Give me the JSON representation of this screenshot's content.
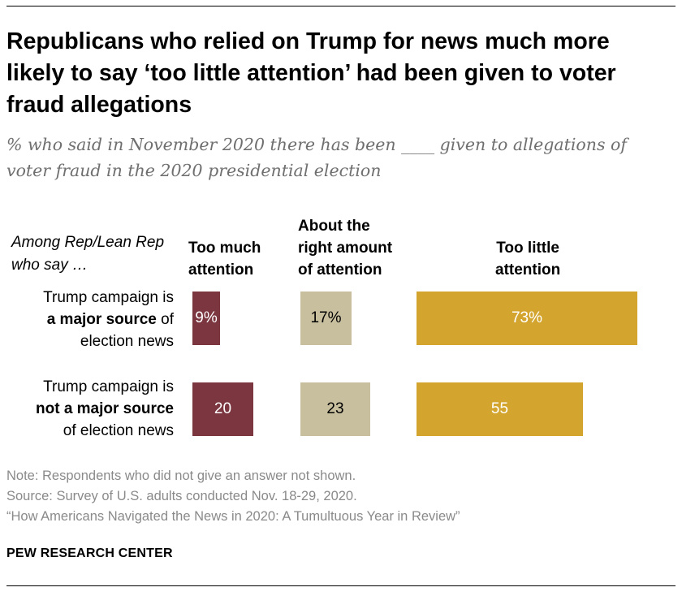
{
  "title": "Republicans who relied on Trump for news much more likely to say ‘too little attention’ had been given to voter fraud allegations",
  "subtitle": "% who said in November 2020 there has been ____ given to allegations of voter fraud in the 2020 presidential election",
  "chart_data": {
    "type": "bar",
    "orientation": "horizontal",
    "group_label": "Among Rep/Lean Rep who say …",
    "categories": [
      {
        "line1": "Trump campaign is",
        "emph": "a major source",
        "tail": " of",
        "line3": "election news"
      },
      {
        "line1": "Trump campaign is",
        "emph": "not a major source",
        "tail": "",
        "line3": "of election news"
      }
    ],
    "series": [
      {
        "name": "Too much attention",
        "color": "#7b3640",
        "values": [
          9,
          20
        ],
        "labels": [
          "9%",
          "20"
        ]
      },
      {
        "name": "About the right amount of attention",
        "color": "#c8bf9f",
        "values": [
          17,
          23
        ],
        "labels": [
          "17%",
          "23"
        ]
      },
      {
        "name": "Too little attention",
        "color": "#d3a52f",
        "values": [
          73,
          55
        ],
        "labels": [
          "73%",
          "55"
        ]
      }
    ],
    "column_headers": [
      [
        "Too much",
        "attention"
      ],
      [
        "About the",
        "right amount",
        "of attention"
      ],
      [
        "Too little",
        "attention"
      ]
    ],
    "unit": "%"
  },
  "notes": {
    "note": "Note: Respondents who did not give an answer not shown.",
    "source": "Source: Survey of U.S. adults conducted Nov. 18-29, 2020.",
    "report": "“How Americans Navigated the News in 2020: A Tumultuous Year in Review”"
  },
  "brand": "PEW RESEARCH CENTER"
}
